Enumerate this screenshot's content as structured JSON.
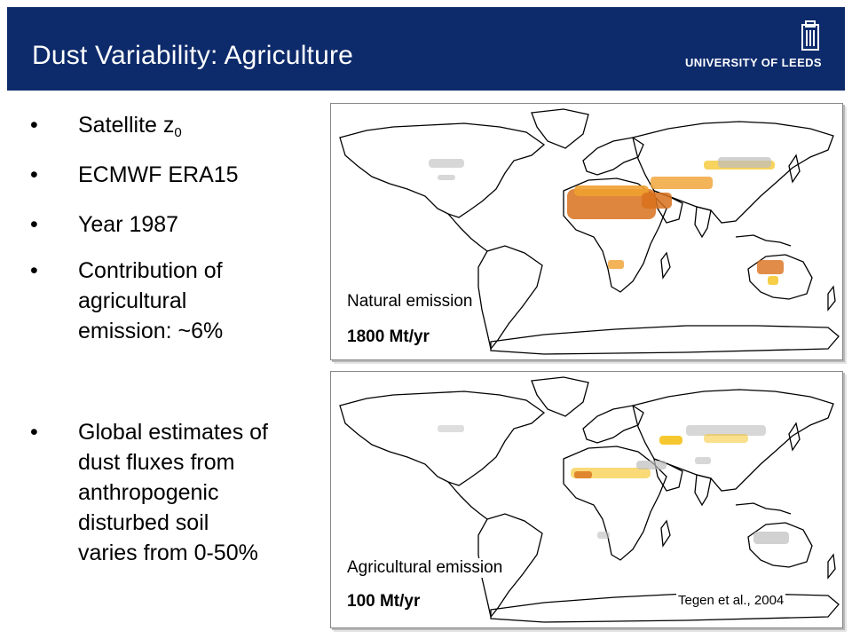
{
  "header": {
    "title": "Dust Variability: Agriculture",
    "logo_text": "UNIVERSITY OF LEEDS",
    "background": "#0d2a6b"
  },
  "bullets": {
    "item1_text": "Satellite z",
    "item1_sub": "0",
    "item2_text": "ECMWF ERA15",
    "item3_text": "Year 1987",
    "item4_lines": [
      "Contribution of",
      "agricultural",
      "emission: ~6%"
    ],
    "item5_lines": [
      "Global estimates of",
      "dust fluxes from",
      "anthropogenic",
      "disturbed soil",
      "varies from 0-50%"
    ]
  },
  "maps": {
    "natural": {
      "label": "Natural emission",
      "value": "1800 Mt/yr"
    },
    "agricultural": {
      "label": "Agricultural emission",
      "value": "100 Mt/yr"
    }
  },
  "citation": "Tegen et al., 2004",
  "colors": {
    "dust_high": "#d9711c",
    "dust_mid": "#f0a030",
    "dust_low": "#f5c21a",
    "gray": "#bdbdbd"
  }
}
